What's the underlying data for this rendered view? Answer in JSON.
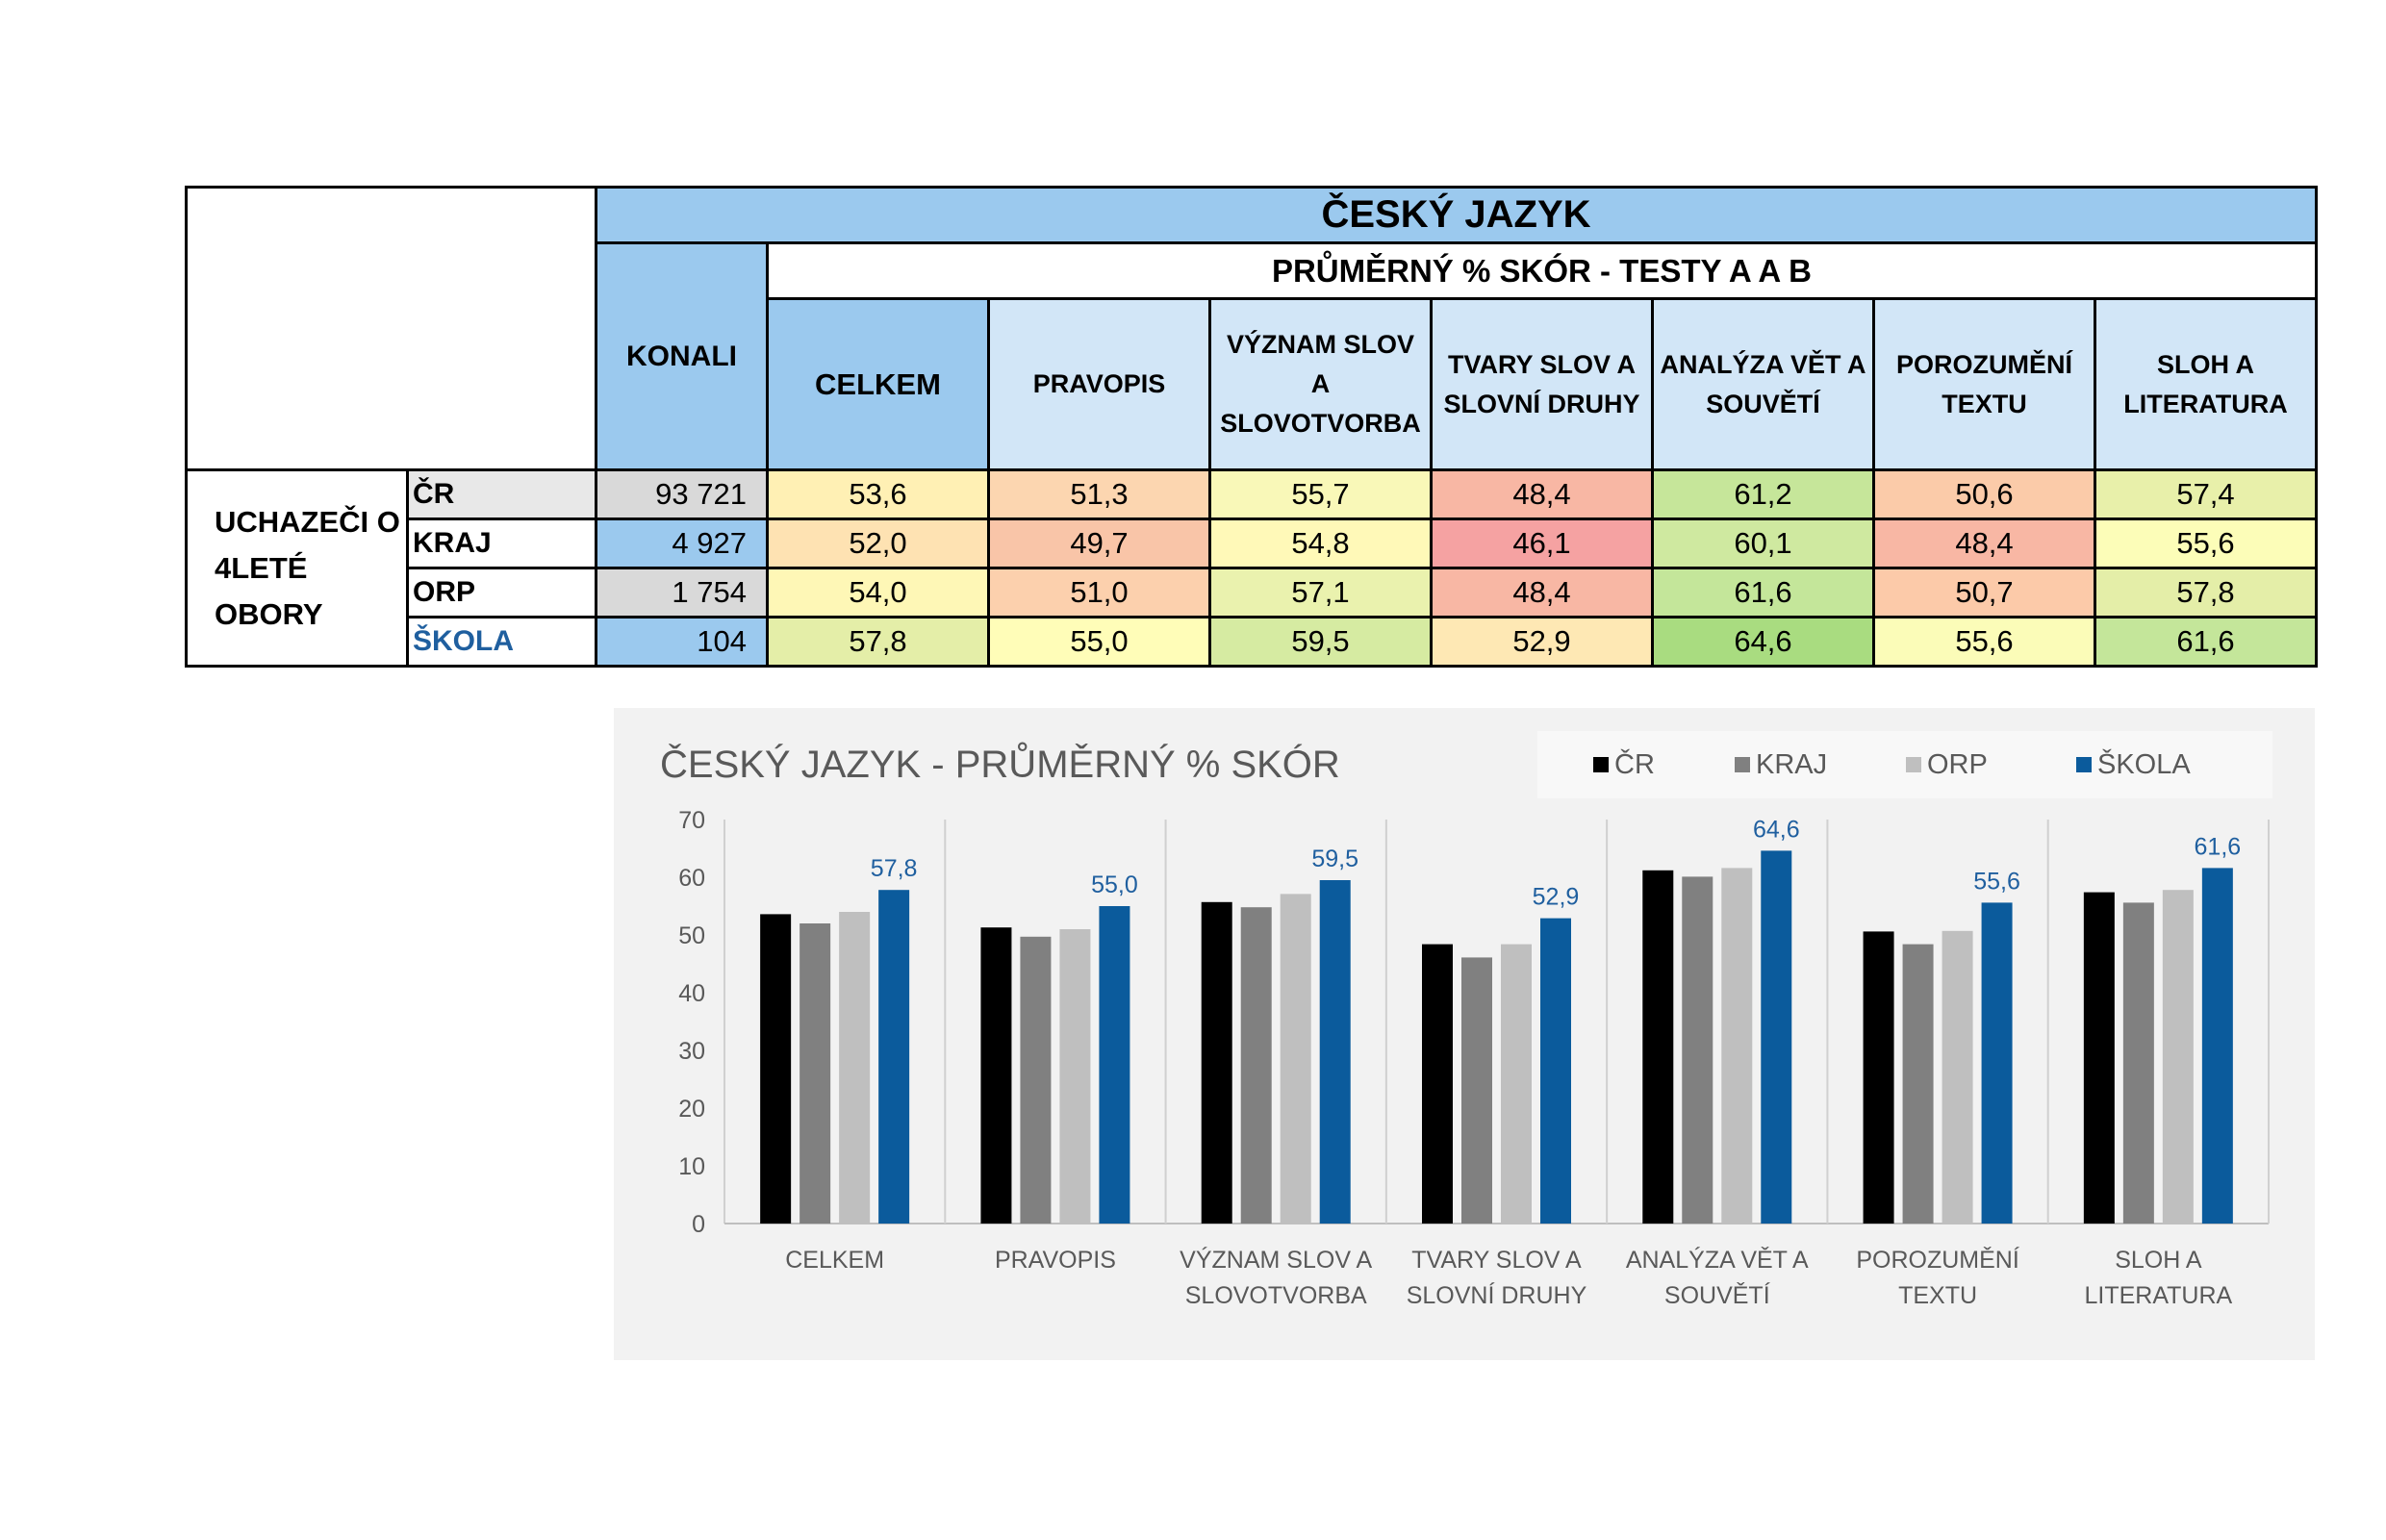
{
  "table": {
    "title": "ČESKÝ JAZYK",
    "subtitle": "PRŮMĚRNÝ % SKÓR - TESTY A A B",
    "konali_header": "KONALI",
    "group_label": [
      "UCHAZEČI O",
      "4LETÉ",
      "OBORY"
    ],
    "columns": [
      [
        "CELKEM"
      ],
      [
        "PRAVOPIS"
      ],
      [
        "VÝZNAM SLOV",
        "A",
        "SLOVOTVORBA"
      ],
      [
        "TVARY SLOV A",
        "SLOVNÍ DRUHY"
      ],
      [
        "ANALÝZA VĚT A",
        "SOUVĚTÍ"
      ],
      [
        "POROZUMĚNÍ",
        "TEXTU"
      ],
      [
        "SLOH A",
        "LITERATURA"
      ]
    ],
    "rows": [
      {
        "label": "ČR",
        "konali": "93 721",
        "values": [
          "53,6",
          "51,3",
          "55,7",
          "48,4",
          "61,2",
          "50,6",
          "57,4"
        ],
        "colors": [
          "#fff0b4",
          "#fcd6b0",
          "#f9f8b8",
          "#f8b7a4",
          "#c6e69a",
          "#fbcba9",
          "#e8f0aa"
        ]
      },
      {
        "label": "KRAJ",
        "konali": "4 927",
        "values": [
          "52,0",
          "49,7",
          "54,8",
          "46,1",
          "60,1",
          "48,4",
          "55,6"
        ],
        "colors": [
          "#fee2b2",
          "#f9c5a8",
          "#fff9b8",
          "#f5a2a2",
          "#cfe9a0",
          "#f8b7a4",
          "#fcfdb8"
        ]
      },
      {
        "label": "ORP",
        "konali": "1 754",
        "values": [
          "54,0",
          "51,0",
          "57,1",
          "48,4",
          "61,6",
          "50,7",
          "57,8"
        ],
        "colors": [
          "#fef7b6",
          "#fcd0ad",
          "#eaf2ae",
          "#f8b7a4",
          "#c4e69a",
          "#fccaa9",
          "#e4eea8"
        ]
      },
      {
        "label": "ŠKOLA",
        "konali": "104",
        "values": [
          "57,8",
          "55,0",
          "59,5",
          "52,9",
          "64,6",
          "55,6",
          "61,6"
        ],
        "colors": [
          "#e4eea8",
          "#fffdb8",
          "#d6eba2",
          "#fee8b4",
          "#a9dc80",
          "#fbfcb8",
          "#c4e69a"
        ]
      }
    ]
  },
  "chart_data": {
    "type": "bar",
    "title": "ČESKÝ JAZYK - PRŮMĚRNÝ % SKÓR",
    "categories": [
      [
        "CELKEM"
      ],
      [
        "PRAVOPIS"
      ],
      [
        "VÝZNAM SLOV A",
        "SLOVOTVORBA"
      ],
      [
        "TVARY SLOV A",
        "SLOVNÍ DRUHY"
      ],
      [
        "ANALÝZA VĚT A",
        "SOUVĚTÍ"
      ],
      [
        "POROZUMĚNÍ",
        "TEXTU"
      ],
      [
        "SLOH A",
        "LITERATURA"
      ]
    ],
    "series": [
      {
        "name": "ČR",
        "color": "#000000",
        "values": [
          53.6,
          51.3,
          55.7,
          48.4,
          61.2,
          50.6,
          57.4
        ]
      },
      {
        "name": "KRAJ",
        "color": "#808080",
        "values": [
          52.0,
          49.7,
          54.8,
          46.1,
          60.1,
          48.4,
          55.6
        ]
      },
      {
        "name": "ORP",
        "color": "#bfbfbf",
        "values": [
          54.0,
          51.0,
          57.1,
          48.4,
          61.6,
          50.7,
          57.8
        ]
      },
      {
        "name": "ŠKOLA",
        "color": "#0b5b9c",
        "values": [
          57.8,
          55.0,
          59.5,
          52.9,
          64.6,
          55.6,
          61.6
        ]
      }
    ],
    "labeled_series": "ŠKOLA",
    "data_labels": [
      "57,8",
      "55,0",
      "59,5",
      "52,9",
      "64,6",
      "55,6",
      "61,6"
    ],
    "ylim": [
      0,
      70
    ],
    "yticks": [
      0,
      10,
      20,
      30,
      40,
      50,
      60,
      70
    ],
    "grid": "vertical separators between categories",
    "legend": "top-right"
  }
}
